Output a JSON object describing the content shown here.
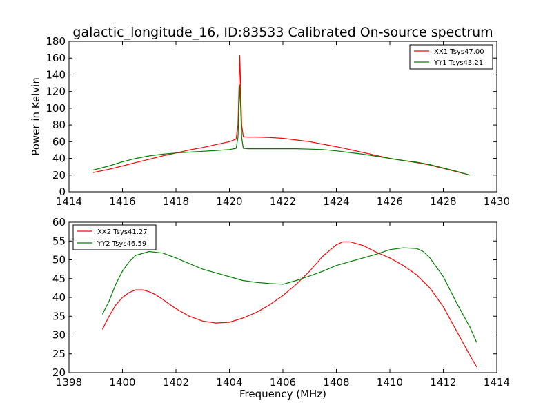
{
  "chart_data": [
    {
      "type": "line",
      "title": "galactic_longitude_16, ID:83533 Calibrated On-source spectrum",
      "xlabel": "",
      "ylabel": "Power in Kelvin",
      "xlim": [
        1414,
        1430
      ],
      "ylim": [
        0,
        180
      ],
      "xticks": [
        1414,
        1416,
        1418,
        1420,
        1422,
        1424,
        1426,
        1428,
        1430
      ],
      "yticks": [
        0,
        20,
        40,
        60,
        80,
        100,
        120,
        140,
        160,
        180
      ],
      "grid": false,
      "legend_position": "top-right",
      "series": [
        {
          "name": "XX1 Tsys47.00",
          "color": "#ff0000",
          "points": [
            [
              1414.9,
              23
            ],
            [
              1415.5,
              27
            ],
            [
              1416,
              31
            ],
            [
              1416.5,
              35
            ],
            [
              1417,
              39
            ],
            [
              1417.5,
              43
            ],
            [
              1418,
              46.5
            ],
            [
              1418.5,
              50
            ],
            [
              1419,
              53
            ],
            [
              1419.5,
              56.5
            ],
            [
              1420,
              60
            ],
            [
              1420.25,
              63
            ],
            [
              1420.32,
              80
            ],
            [
              1420.36,
              125
            ],
            [
              1420.39,
              163
            ],
            [
              1420.42,
              125
            ],
            [
              1420.46,
              80
            ],
            [
              1420.52,
              66
            ],
            [
              1420.7,
              65.5
            ],
            [
              1421,
              65.5
            ],
            [
              1421.5,
              65
            ],
            [
              1422,
              64
            ],
            [
              1422.5,
              62
            ],
            [
              1423,
              60
            ],
            [
              1423.5,
              57
            ],
            [
              1424,
              54
            ],
            [
              1424.5,
              50.5
            ],
            [
              1425,
              47
            ],
            [
              1425.5,
              43.5
            ],
            [
              1426,
              40
            ],
            [
              1426.5,
              37.5
            ],
            [
              1427,
              35
            ],
            [
              1427.5,
              32
            ],
            [
              1428,
              28
            ],
            [
              1428.5,
              24
            ],
            [
              1429,
              20
            ]
          ]
        },
        {
          "name": "YY1 Tsys43.21",
          "color": "#008000",
          "points": [
            [
              1414.9,
              26
            ],
            [
              1415.5,
              31
            ],
            [
              1416,
              36
            ],
            [
              1416.5,
              40
            ],
            [
              1417,
              43
            ],
            [
              1417.5,
              45
            ],
            [
              1418,
              46.5
            ],
            [
              1418.5,
              47.5
            ],
            [
              1419,
              48.5
            ],
            [
              1419.5,
              49.5
            ],
            [
              1420,
              50.5
            ],
            [
              1420.25,
              52
            ],
            [
              1420.32,
              65
            ],
            [
              1420.36,
              100
            ],
            [
              1420.39,
              128
            ],
            [
              1420.42,
              100
            ],
            [
              1420.46,
              65
            ],
            [
              1420.52,
              52
            ],
            [
              1420.7,
              51.5
            ],
            [
              1421,
              51.5
            ],
            [
              1421.5,
              51.5
            ],
            [
              1422,
              51.5
            ],
            [
              1422.5,
              51.5
            ],
            [
              1423,
              51
            ],
            [
              1423.5,
              50.5
            ],
            [
              1424,
              49
            ],
            [
              1424.5,
              47
            ],
            [
              1425,
              45
            ],
            [
              1425.5,
              42.5
            ],
            [
              1426,
              40
            ],
            [
              1426.5,
              37.5
            ],
            [
              1427,
              35.5
            ],
            [
              1427.5,
              32.5
            ],
            [
              1428,
              28.5
            ],
            [
              1428.5,
              24.5
            ],
            [
              1429,
              20
            ]
          ]
        }
      ]
    },
    {
      "type": "line",
      "title": "",
      "xlabel": "Frequency (MHz)",
      "ylabel": "",
      "xlim": [
        1398,
        1414
      ],
      "ylim": [
        20,
        60
      ],
      "xticks": [
        1398,
        1400,
        1402,
        1404,
        1406,
        1408,
        1410,
        1412,
        1414
      ],
      "yticks": [
        20,
        25,
        30,
        35,
        40,
        45,
        50,
        55,
        60
      ],
      "grid": false,
      "legend_position": "top-left",
      "series": [
        {
          "name": "XX2 Tsys41.27",
          "color": "#ff0000",
          "points": [
            [
              1399.25,
              31.5
            ],
            [
              1399.5,
              35
            ],
            [
              1399.75,
              38
            ],
            [
              1400,
              40
            ],
            [
              1400.25,
              41.3
            ],
            [
              1400.5,
              42
            ],
            [
              1400.75,
              42
            ],
            [
              1401,
              41.5
            ],
            [
              1401.25,
              40.7
            ],
            [
              1401.5,
              39.5
            ],
            [
              1402,
              37
            ],
            [
              1402.5,
              35
            ],
            [
              1403,
              33.7
            ],
            [
              1403.5,
              33.2
            ],
            [
              1404,
              33.4
            ],
            [
              1404.5,
              34.5
            ],
            [
              1405,
              36
            ],
            [
              1405.5,
              38
            ],
            [
              1406,
              40.5
            ],
            [
              1406.5,
              43.5
            ],
            [
              1407,
              47
            ],
            [
              1407.5,
              51
            ],
            [
              1408,
              54
            ],
            [
              1408.25,
              54.8
            ],
            [
              1408.5,
              54.8
            ],
            [
              1409,
              53.8
            ],
            [
              1409.5,
              52
            ],
            [
              1410,
              50.5
            ],
            [
              1410.5,
              48.5
            ],
            [
              1411,
              46
            ],
            [
              1411.5,
              42.5
            ],
            [
              1412,
              37.5
            ],
            [
              1412.5,
              31
            ],
            [
              1413,
              24.5
            ],
            [
              1413.25,
              21.5
            ]
          ]
        },
        {
          "name": "YY2 Tsys46.59",
          "color": "#008000",
          "points": [
            [
              1399.25,
              35.5
            ],
            [
              1399.5,
              39
            ],
            [
              1399.75,
              43.5
            ],
            [
              1400,
              47
            ],
            [
              1400.25,
              49.5
            ],
            [
              1400.5,
              51.2
            ],
            [
              1401,
              52.2
            ],
            [
              1401.5,
              51.8
            ],
            [
              1402,
              50.5
            ],
            [
              1402.5,
              49
            ],
            [
              1403,
              47.5
            ],
            [
              1403.5,
              46.5
            ],
            [
              1404,
              45.5
            ],
            [
              1404.5,
              44.5
            ],
            [
              1405,
              44
            ],
            [
              1405.5,
              43.7
            ],
            [
              1406,
              43.5
            ],
            [
              1406.5,
              44.5
            ],
            [
              1407,
              45.7
            ],
            [
              1407.5,
              47
            ],
            [
              1408,
              48.5
            ],
            [
              1408.5,
              49.5
            ],
            [
              1409,
              50.5
            ],
            [
              1409.5,
              51.5
            ],
            [
              1410,
              52.7
            ],
            [
              1410.5,
              53.2
            ],
            [
              1411,
              53
            ],
            [
              1411.25,
              52.2
            ],
            [
              1411.5,
              50.5
            ],
            [
              1412,
              45.5
            ],
            [
              1412.5,
              38.5
            ],
            [
              1413,
              32
            ],
            [
              1413.25,
              28
            ]
          ]
        }
      ]
    }
  ]
}
